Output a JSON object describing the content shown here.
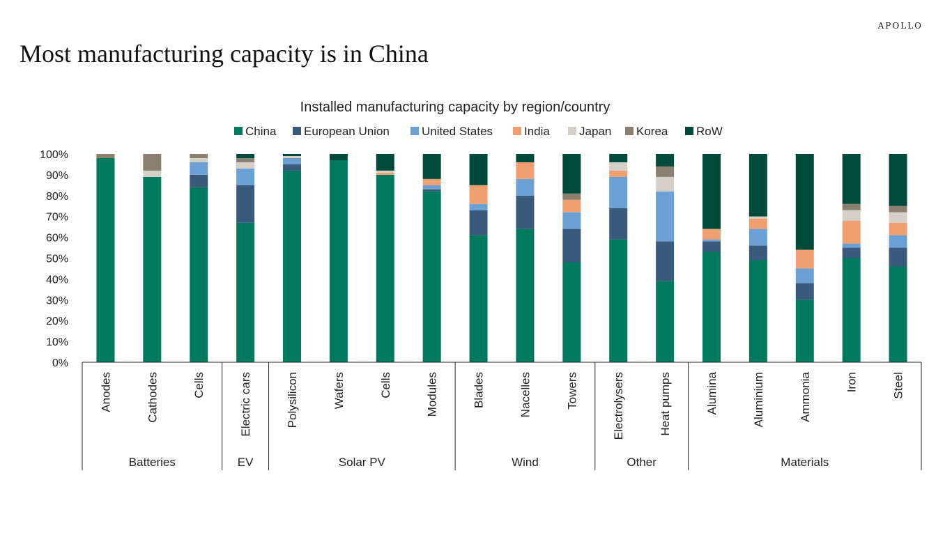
{
  "brand": "APOLLO",
  "page_title": "Most manufacturing capacity is in China",
  "chart_data": {
    "type": "bar",
    "stacked": true,
    "title": "Installed manufacturing capacity by region/country",
    "ylim": [
      0,
      100
    ],
    "y_ticks": [
      "0%",
      "10%",
      "20%",
      "30%",
      "40%",
      "50%",
      "60%",
      "70%",
      "80%",
      "90%",
      "100%"
    ],
    "legend_position": "top",
    "categories": [
      "Anodes",
      "Cathodes",
      "Cells",
      "Electric cars",
      "Polysilicon",
      "Wafers",
      "Cells",
      "Modules",
      "Blades",
      "Nacelles",
      "Towers",
      "Electrolysers",
      "Heat pumps",
      "Alumina",
      "Aluminium",
      "Ammonia",
      "Iron",
      "Steel"
    ],
    "groups": [
      {
        "name": "Batteries",
        "count": 3
      },
      {
        "name": "EV",
        "count": 1
      },
      {
        "name": "Solar PV",
        "count": 4
      },
      {
        "name": "Wind",
        "count": 3
      },
      {
        "name": "Other",
        "count": 2
      },
      {
        "name": "Materials",
        "count": 5
      }
    ],
    "series": [
      {
        "name": "China",
        "color": "#007a5e",
        "values": [
          98,
          89,
          84,
          67,
          92,
          97,
          90,
          82,
          61,
          64,
          48,
          59,
          39,
          53,
          49,
          30,
          50,
          46
        ]
      },
      {
        "name": "European Union",
        "color": "#3a5a7c",
        "values": [
          0,
          0,
          6,
          18,
          3,
          0,
          0,
          1,
          12,
          16,
          16,
          15,
          19,
          5,
          7,
          8,
          5,
          9
        ]
      },
      {
        "name": "United States",
        "color": "#6aa0d4",
        "values": [
          0,
          0,
          6,
          8,
          3,
          0,
          0,
          2,
          3,
          8,
          8,
          15,
          24,
          1,
          8,
          7,
          2,
          6
        ]
      },
      {
        "name": "India",
        "color": "#f0a070",
        "values": [
          0,
          0,
          0,
          0,
          0,
          0,
          1,
          3,
          9,
          8,
          6,
          3,
          0,
          5,
          5,
          9,
          11,
          6
        ]
      },
      {
        "name": "Japan",
        "color": "#d4d0c8",
        "values": [
          0,
          3,
          2,
          3,
          1,
          0,
          1,
          0,
          0,
          0,
          0,
          4,
          7,
          0,
          1,
          0,
          5,
          5
        ]
      },
      {
        "name": "Korea",
        "color": "#8b8070",
        "values": [
          2,
          8,
          2,
          2,
          0,
          0,
          0,
          0,
          0,
          0,
          3,
          0,
          5,
          0,
          0,
          0,
          3,
          3
        ]
      },
      {
        "name": "RoW",
        "color": "#004a3a",
        "values": [
          0,
          0,
          0,
          2,
          1,
          3,
          8,
          12,
          15,
          4,
          19,
          4,
          6,
          36,
          30,
          46,
          24,
          25
        ]
      }
    ]
  }
}
